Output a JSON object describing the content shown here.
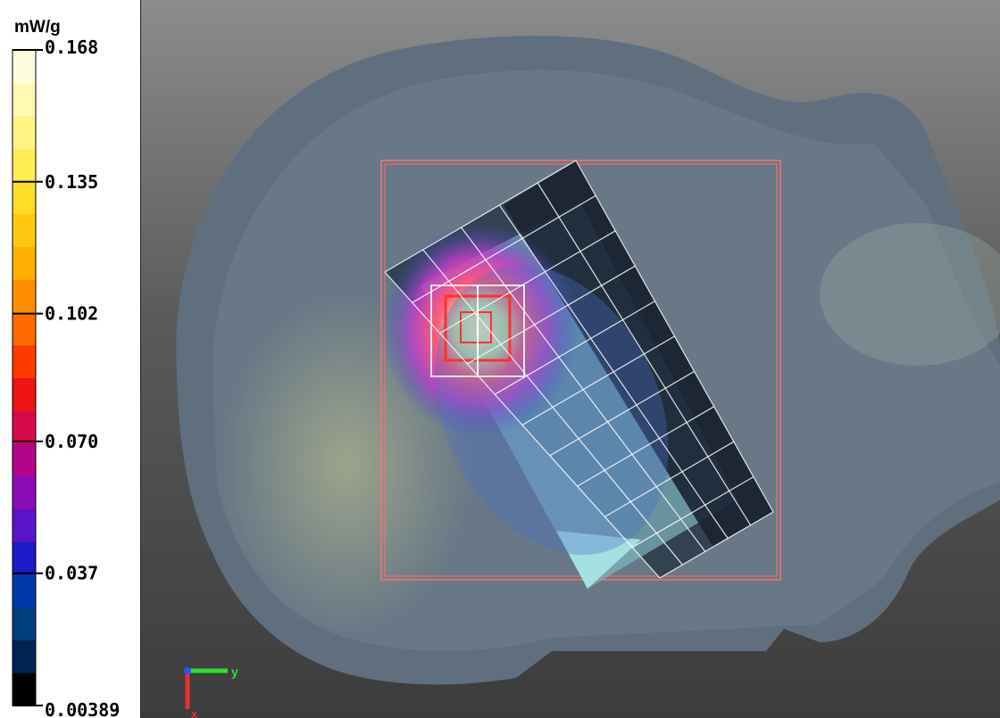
{
  "chart_data": {
    "type": "heatmap",
    "colorbar": {
      "unit": "mW/g",
      "min": 0.00389,
      "max": 0.168,
      "tick_labels": [
        "0.168",
        "0.135",
        "0.102",
        "0.070",
        "0.037",
        "0.00389"
      ],
      "tick_values": [
        0.168,
        0.135,
        0.102,
        0.07,
        0.037,
        0.00389
      ],
      "colors": [
        "#000000",
        "#00234f",
        "#003d7f",
        "#0038a8",
        "#1b1bc8",
        "#5a13c8",
        "#8a0cb4",
        "#b4048c",
        "#d80a4a",
        "#f01414",
        "#ff3a00",
        "#ff6a00",
        "#ff8c00",
        "#ffb000",
        "#ffc810",
        "#ffdc28",
        "#ffec50",
        "#fff482",
        "#fff9b4",
        "#fffde0"
      ]
    },
    "axes_indicator": [
      "y",
      "x"
    ]
  }
}
